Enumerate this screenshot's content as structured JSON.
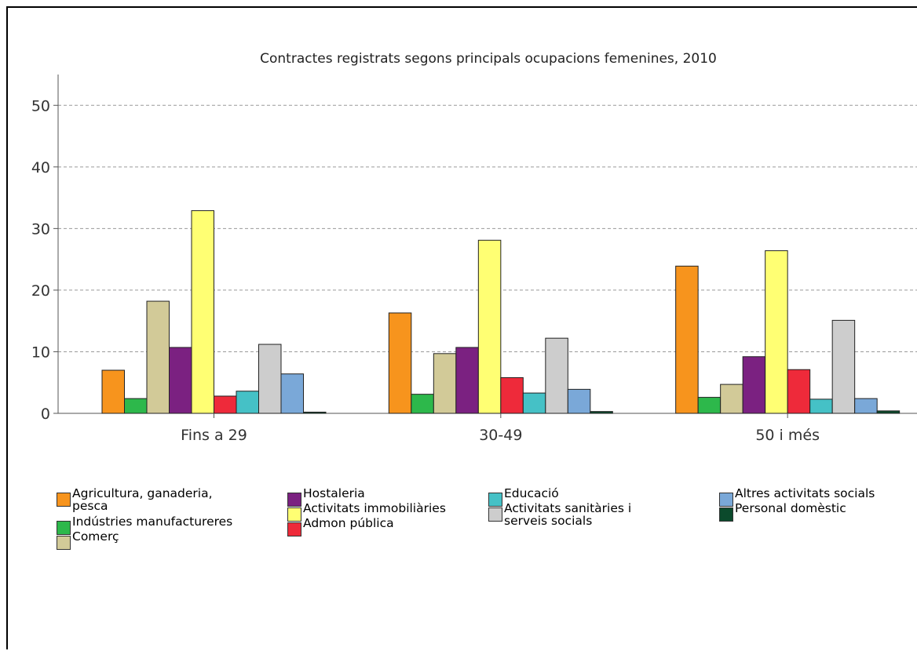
{
  "chart_data": {
    "type": "bar",
    "title": "Contractes registrats segons principals ocupacions femenines, 2010",
    "xlabel": "",
    "ylabel": "",
    "ylim": [
      0,
      55
    ],
    "yticks": [
      0,
      10,
      20,
      30,
      40,
      50
    ],
    "grid": true,
    "legend_position": "bottom",
    "categories": [
      "Fins a 29",
      "30-49",
      "50 i més"
    ],
    "series": [
      {
        "name": "Agricultura, ganaderia, pesca",
        "color": "#f7941d",
        "values": [
          7.0,
          16.3,
          23.9
        ]
      },
      {
        "name": "Indústries manufactureres",
        "color": "#2db84b",
        "values": [
          2.4,
          3.1,
          2.6
        ]
      },
      {
        "name": "Comerç",
        "color": "#d2ca98",
        "values": [
          18.2,
          9.7,
          4.7
        ]
      },
      {
        "name": "Hostaleria",
        "color": "#7b2181",
        "values": [
          10.7,
          10.7,
          9.2
        ]
      },
      {
        "name": "Activitats immobiliàries",
        "color": "#ffff73",
        "values": [
          32.9,
          28.1,
          26.4
        ]
      },
      {
        "name": "Admon pública",
        "color": "#ee2a3a",
        "values": [
          2.8,
          5.8,
          7.1
        ]
      },
      {
        "name": "Educació",
        "color": "#45c1c6",
        "values": [
          3.6,
          3.3,
          2.3
        ]
      },
      {
        "name": "Activitats sanitàries i serveis socials",
        "color": "#cdcdcd",
        "values": [
          11.2,
          12.2,
          15.1
        ]
      },
      {
        "name": "Altres activitats socials",
        "color": "#7aa8d8",
        "values": [
          6.4,
          3.9,
          2.4
        ]
      },
      {
        "name": "Personal domèstic",
        "color": "#0b4a2c",
        "values": [
          0.2,
          0.3,
          0.4
        ]
      }
    ]
  },
  "legend": {
    "labels": [
      "Agricultura, ganaderia,\npesca",
      "Indústries manufactureres",
      "Comerç",
      "Hostaleria",
      "Activitats immobiliàries",
      "Admon pública",
      "Educació",
      "Activitats sanitàries i\nserveis socials",
      "Altres activitats socials",
      "Personal domèstic"
    ]
  }
}
